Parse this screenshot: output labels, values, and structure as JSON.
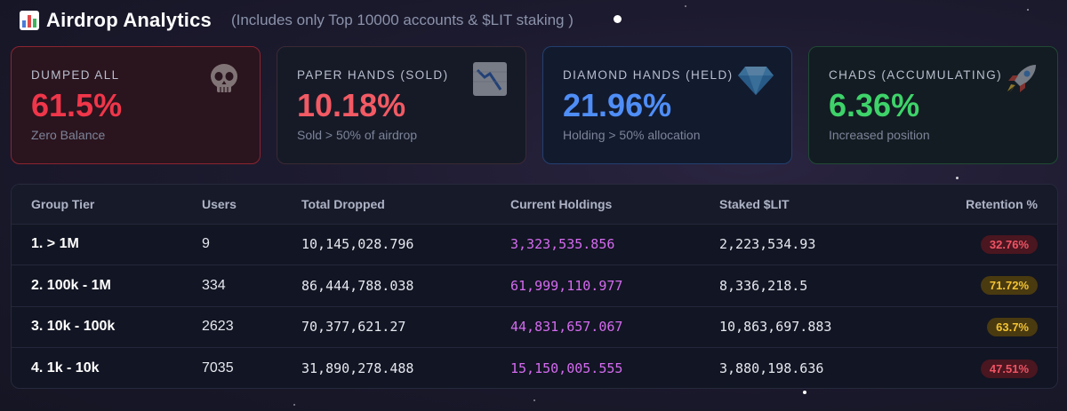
{
  "header": {
    "title": "Airdrop Analytics",
    "subtitle": "(Includes only Top 10000 accounts & $LIT staking )",
    "icon": "bar-chart-icon"
  },
  "cards": [
    {
      "id": "dumped",
      "title": "DUMPED ALL",
      "value": "61.5%",
      "sub": "Zero Balance",
      "icon": "skull-icon",
      "color": "#f0364a"
    },
    {
      "id": "paper",
      "title": "PAPER HANDS (SOLD)",
      "value": "10.18%",
      "sub": "Sold > 50% of airdrop",
      "icon": "chart-down-icon",
      "color": "#f25a64"
    },
    {
      "id": "diamond",
      "title": "DIAMOND HANDS (HELD)",
      "value": "21.96%",
      "sub": "Holding > 50% allocation",
      "icon": "gem-icon",
      "color": "#4f8ef7"
    },
    {
      "id": "chads",
      "title": "CHADS (ACCUMULATING)",
      "value": "6.36%",
      "sub": "Increased position",
      "icon": "rocket-icon",
      "color": "#3ed36a"
    }
  ],
  "table": {
    "headers": [
      "Group Tier",
      "Users",
      "Total Dropped",
      "Current Holdings",
      "Staked $LIT",
      "Retention %"
    ],
    "rows": [
      {
        "tier": "1. > 1M",
        "users": "9",
        "dropped": "10,145,028.796",
        "holdings": "3,323,535.856",
        "staked": "2,223,534.93",
        "retention": "32.76%",
        "badge_bg": "#4a1620",
        "badge_fg": "#f05464"
      },
      {
        "tier": "2. 100k - 1M",
        "users": "334",
        "dropped": "86,444,788.038",
        "holdings": "61,999,110.977",
        "staked": "8,336,218.5",
        "retention": "71.72%",
        "badge_bg": "#4a3a10",
        "badge_fg": "#f2c331"
      },
      {
        "tier": "3. 10k - 100k",
        "users": "2623",
        "dropped": "70,377,621.27",
        "holdings": "44,831,657.067",
        "staked": "10,863,697.883",
        "retention": "63.7%",
        "badge_bg": "#4a3a10",
        "badge_fg": "#f2c331"
      },
      {
        "tier": "4. 1k - 10k",
        "users": "7035",
        "dropped": "31,890,278.488",
        "holdings": "15,150,005.555",
        "staked": "3,880,198.636",
        "retention": "47.51%",
        "badge_bg": "#4a1620",
        "badge_fg": "#f05464"
      }
    ]
  }
}
